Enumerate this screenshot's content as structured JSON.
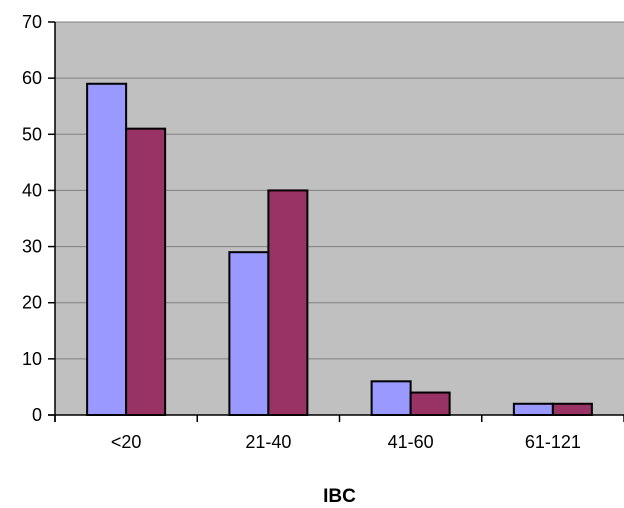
{
  "chart_data": {
    "type": "bar",
    "title": "",
    "xlabel": "IBC",
    "ylabel": "",
    "categories": [
      "<20",
      "21-40",
      "41-60",
      "61-121"
    ],
    "series": [
      {
        "values": [
          59,
          29,
          6,
          2
        ],
        "color": "#9999ff"
      },
      {
        "values": [
          51,
          40,
          4,
          2
        ],
        "color": "#993366"
      }
    ],
    "ylim": [
      0,
      70
    ],
    "yticks": [
      0,
      10,
      20,
      30,
      40,
      50,
      60,
      70
    ],
    "grid": true,
    "legend": "none",
    "plot_background": "#c0c0c0",
    "gridline_color": "#808080"
  }
}
